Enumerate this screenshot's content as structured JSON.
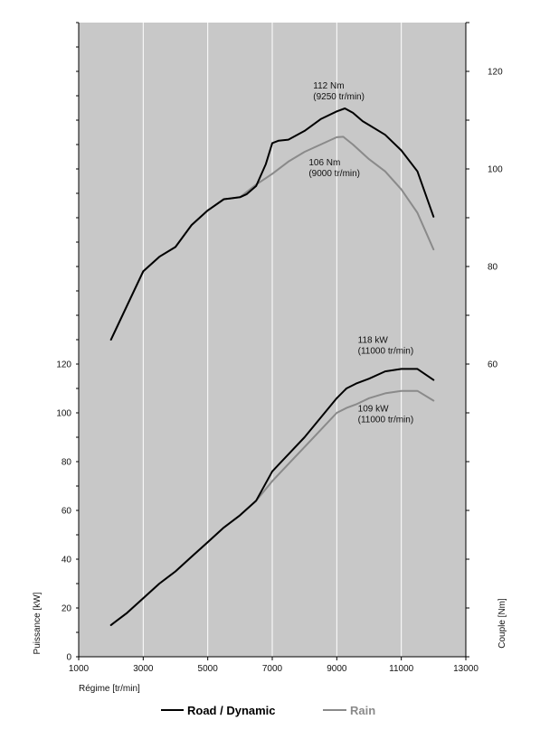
{
  "chart_data": {
    "type": "line",
    "xlabel": "Régime [tr/min]",
    "ylabel_left": "Puissance [kW]",
    "ylabel_right": "Couple [Nm]",
    "xlim": [
      1000,
      13000
    ],
    "x_ticks": [
      "1000",
      "3000",
      "5000",
      "7000",
      "9000",
      "11000",
      "13000"
    ],
    "power_axis": {
      "range": [
        0,
        120
      ],
      "ticks": [
        "0",
        "20",
        "40",
        "60",
        "80",
        "100",
        "120"
      ]
    },
    "torque_axis": {
      "range": [
        60,
        120
      ],
      "ticks": [
        "60",
        "80",
        "100",
        "120"
      ]
    },
    "grid": true,
    "background_color": "#c8c8c8",
    "colors": {
      "road": "#000000",
      "rain": "#8a8a8a",
      "grid": "#ffffff"
    },
    "legend_position": "bottom",
    "series": [
      {
        "name": "Road / Dynamic",
        "quantity": "torque",
        "unit": "Nm",
        "x": [
          2000,
          2500,
          3000,
          3500,
          4000,
          4500,
          5000,
          5500,
          6000,
          6200,
          6500,
          6800,
          7000,
          7200,
          7500,
          8000,
          8500,
          9000,
          9250,
          9500,
          9800,
          10000,
          10500,
          11000,
          11500,
          12000
        ],
        "y": [
          65,
          72,
          79,
          82,
          84,
          88.5,
          91.5,
          93.8,
          94.2,
          94.8,
          96.5,
          101,
          105.3,
          105.8,
          106,
          107.8,
          110.2,
          111.8,
          112.4,
          111.5,
          109.8,
          109,
          107,
          103.8,
          99.5,
          90.2
        ]
      },
      {
        "name": "Rain",
        "quantity": "torque",
        "unit": "Nm",
        "x": [
          2000,
          2500,
          3000,
          3500,
          4000,
          4500,
          5000,
          5500,
          6000,
          6500,
          7000,
          7500,
          8000,
          8500,
          9000,
          9200,
          9500,
          10000,
          10500,
          11000,
          11500,
          12000
        ],
        "y": [
          65,
          72,
          79,
          82,
          84,
          88.5,
          91.5,
          93.8,
          94.2,
          96.8,
          99,
          101.5,
          103.5,
          105,
          106.5,
          106.6,
          105,
          102,
          99.5,
          95.8,
          91,
          83.5
        ]
      },
      {
        "name": "Road / Dynamic",
        "quantity": "power",
        "unit": "kW",
        "x": [
          2000,
          2500,
          3000,
          3500,
          4000,
          4500,
          5000,
          5500,
          6000,
          6500,
          7000,
          7500,
          8000,
          8500,
          9000,
          9300,
          9600,
          10000,
          10500,
          11000,
          11500,
          12000
        ],
        "y": [
          13,
          18,
          24,
          30,
          35,
          41,
          47,
          53,
          58,
          64,
          76,
          83,
          90,
          98,
          106,
          110,
          112,
          114,
          117,
          118,
          118,
          113.5
        ]
      },
      {
        "name": "Rain",
        "quantity": "power",
        "unit": "kW",
        "x": [
          2000,
          2500,
          3000,
          3500,
          4000,
          4500,
          5000,
          5500,
          6000,
          6500,
          7000,
          7500,
          8000,
          8500,
          9000,
          9300,
          9600,
          10000,
          10500,
          11000,
          11500,
          12000
        ],
        "y": [
          13,
          18,
          24,
          30,
          35,
          41,
          47,
          53,
          58,
          64,
          72,
          79,
          86,
          93,
          100,
          102,
          103.5,
          106,
          108,
          109,
          109,
          105
        ]
      }
    ],
    "annotations": [
      {
        "line1": "112 Nm",
        "line2": "(9250 tr/min)",
        "axis": "torque",
        "x": 9250,
        "y": 112.4
      },
      {
        "line1": "106 Nm",
        "line2": "(9000 tr/min)",
        "axis": "torque",
        "x": 9000,
        "y": 106.5
      },
      {
        "line1": "118 kW",
        "line2": "(11000 tr/min)",
        "axis": "power",
        "x": 11000,
        "y": 118
      },
      {
        "line1": "109 kW",
        "line2": "(11000 tr/min)",
        "axis": "power",
        "x": 11000,
        "y": 109
      }
    ],
    "legend": [
      {
        "label": "Road / Dynamic",
        "color": "#000000"
      },
      {
        "label": "Rain",
        "color": "#8a8a8a"
      }
    ]
  }
}
